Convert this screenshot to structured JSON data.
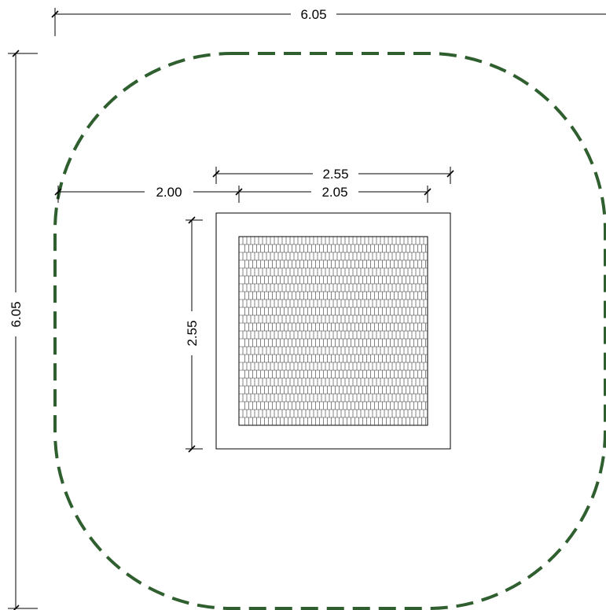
{
  "dimensions": {
    "overall_width": "6.05",
    "overall_height": "6.05",
    "offset_left": "2.00",
    "frame_width": "2.55",
    "frame_height": "2.55",
    "grate_width": "2.05"
  },
  "colors": {
    "boundary": "#2f5f2f",
    "lines": "#000000",
    "background": "#ffffff"
  }
}
